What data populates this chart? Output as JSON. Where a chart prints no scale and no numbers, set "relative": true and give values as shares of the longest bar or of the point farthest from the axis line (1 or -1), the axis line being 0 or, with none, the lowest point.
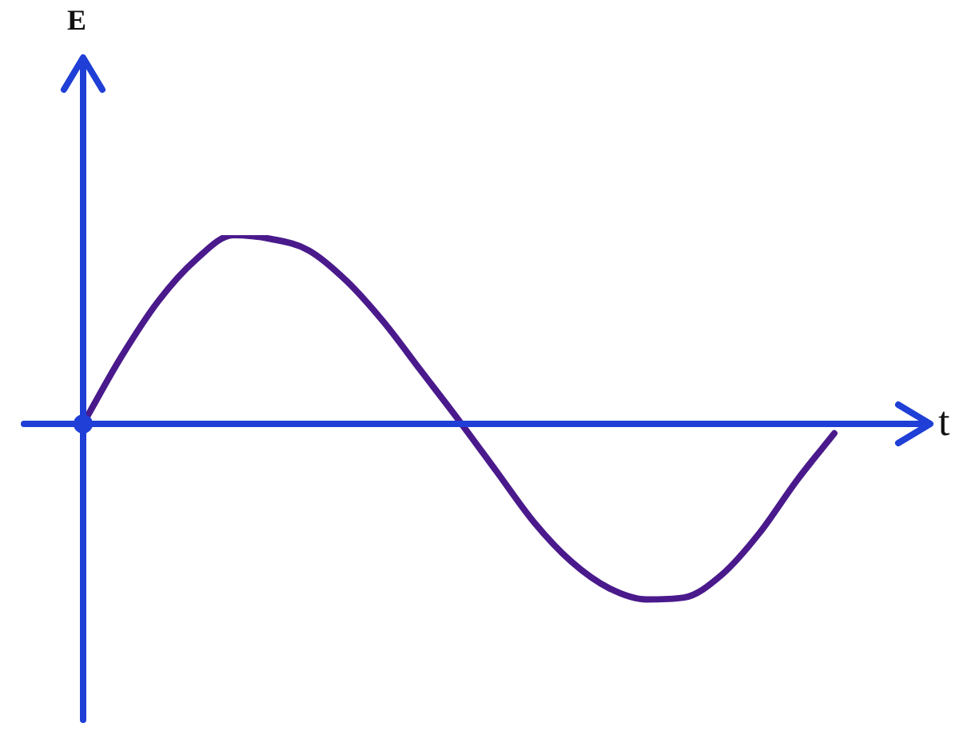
{
  "chart_data": {
    "type": "line",
    "relative": true,
    "xlabel": "t",
    "annotations": [
      "E"
    ],
    "color": "#4a1a8c",
    "line_style": "solid",
    "ref_lines": [
      {
        "axis": "y",
        "value": 0,
        "color": "#1f3fd6"
      }
    ],
    "categories": [
      null,
      null,
      null,
      null,
      null,
      null,
      null,
      null,
      null,
      null,
      null,
      null,
      null,
      null,
      null,
      null,
      null,
      null,
      null,
      null,
      null
    ],
    "values": [
      0,
      0.35,
      0.65,
      0.87,
      1,
      0.98,
      0.92,
      0.76,
      0.54,
      0.28,
      0.02,
      -0.25,
      -0.52,
      -0.73,
      -0.87,
      -0.93,
      -0.92,
      -0.8,
      -0.58,
      -0.3,
      -0.05
    ]
  }
}
